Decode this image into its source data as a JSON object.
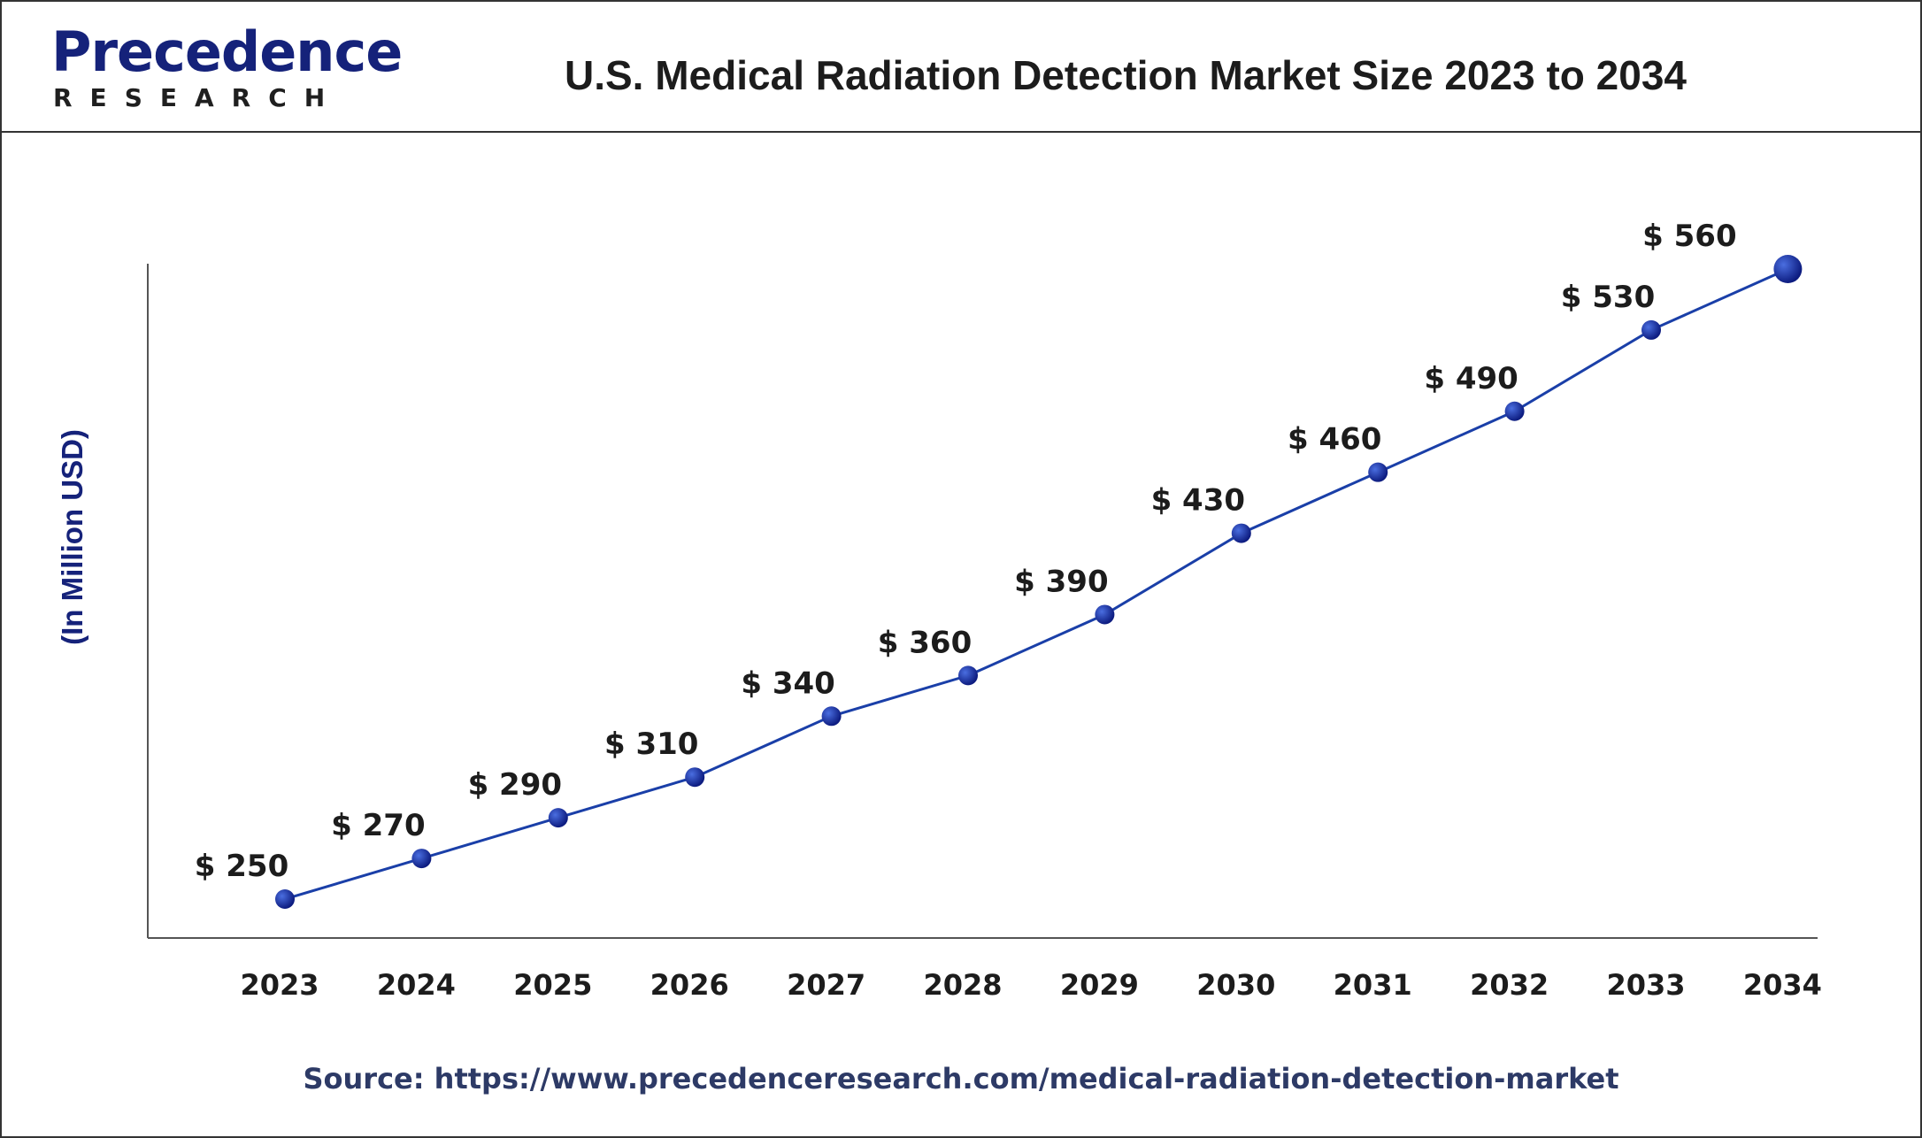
{
  "header": {
    "logo_main": "Precedence",
    "logo_sub": "RESEARCH",
    "title": "U.S. Medical Radiation Detection Market Size 2023 to 2034"
  },
  "source": {
    "text": "Source: https://www.precedenceresearch.com/medical-radiation-detection-market"
  },
  "colors": {
    "line": "#1a3fa8",
    "marker": "#12239a",
    "text": "#1c1c1c",
    "logo": "#15227a"
  },
  "chart_data": {
    "type": "line",
    "title": "U.S. Medical Radiation Detection Market Size 2023 to 2034",
    "xlabel": "",
    "ylabel": "(In Million USD)",
    "categories": [
      "2023",
      "2024",
      "2025",
      "2026",
      "2027",
      "2028",
      "2029",
      "2030",
      "2031",
      "2032",
      "2033",
      "2034"
    ],
    "values": [
      250,
      270,
      290,
      310,
      340,
      360,
      390,
      430,
      460,
      490,
      530,
      560
    ],
    "data_labels": [
      "$ 250",
      "$ 270",
      "$ 290",
      "$ 310",
      "$ 340",
      "$ 360",
      "$ 390",
      "$ 430",
      "$ 460",
      "$ 490",
      "$ 530",
      "$ 560"
    ],
    "grid": false,
    "legend": "none"
  }
}
